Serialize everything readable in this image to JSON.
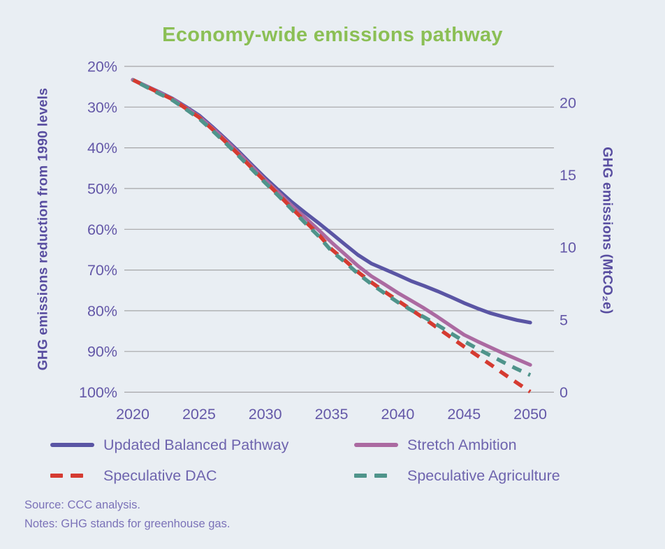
{
  "title": "Economy-wide emissions pathway",
  "colors": {
    "background": "#e9eef3",
    "title": "#8bbf55",
    "axis_text": "#6458a8",
    "axis_title": "#584da0",
    "legend_text": "#6e64ae",
    "gridline": "#a5a5a7",
    "footer_text": "#7b72b8"
  },
  "chart_data": {
    "type": "line",
    "title": "Economy-wide emissions pathway",
    "x": [
      2020,
      2021,
      2022,
      2023,
      2024,
      2025,
      2026,
      2027,
      2028,
      2029,
      2030,
      2031,
      2032,
      2033,
      2034,
      2035,
      2036,
      2037,
      2038,
      2039,
      2040,
      2041,
      2042,
      2043,
      2044,
      2045,
      2046,
      2047,
      2048,
      2049,
      2050
    ],
    "xticks": [
      2020,
      2025,
      2030,
      2035,
      2040,
      2045,
      2050
    ],
    "y_left": {
      "label": "GHG emissions reduction from 1990 levels",
      "unit": "%",
      "ticks": [
        20,
        30,
        40,
        50,
        60,
        70,
        80,
        90,
        100
      ],
      "range": [
        20,
        100
      ],
      "inverted": true
    },
    "y_right": {
      "label": "GHG emissions (MtCO₂e)",
      "ticks": [
        20,
        15,
        10,
        5,
        0
      ],
      "range": [
        0,
        22.5
      ]
    },
    "grid": "horizontal",
    "legend_position": "bottom",
    "series": [
      {
        "name": "Updated Balanced Pathway",
        "color": "#5a55a4",
        "style": "solid",
        "values": [
          23.3,
          24.8,
          26.3,
          27.9,
          29.9,
          32.0,
          34.8,
          37.8,
          40.9,
          44.2,
          47.4,
          50.4,
          53.3,
          55.9,
          58.4,
          61.0,
          63.7,
          66.3,
          68.4,
          69.8,
          71.2,
          72.7,
          73.9,
          75.2,
          76.6,
          78.1,
          79.4,
          80.6,
          81.5,
          82.3,
          82.9
        ]
      },
      {
        "name": "Stretch Ambition",
        "color": "#ab6aa1",
        "style": "solid",
        "values": [
          23.3,
          24.8,
          26.4,
          28.0,
          30.1,
          32.3,
          35.1,
          38.1,
          41.3,
          44.6,
          47.9,
          51.0,
          54.2,
          57.1,
          60.1,
          63.2,
          66.1,
          69.0,
          71.5,
          73.5,
          75.6,
          77.5,
          79.4,
          81.5,
          83.7,
          85.9,
          87.5,
          89.0,
          90.5,
          91.9,
          93.3
        ]
      },
      {
        "name": "Speculative DAC",
        "color": "#d53b31",
        "style": "dashed",
        "values": [
          23.3,
          24.9,
          26.5,
          28.1,
          30.3,
          32.5,
          35.4,
          38.5,
          41.7,
          45.0,
          48.3,
          51.5,
          54.8,
          58.0,
          61.2,
          64.9,
          67.6,
          70.5,
          73.0,
          75.3,
          77.5,
          79.7,
          81.9,
          84.2,
          86.5,
          88.8,
          91.0,
          93.2,
          95.5,
          97.7,
          99.9
        ]
      },
      {
        "name": "Speculative Agriculture",
        "color": "#4f948b",
        "style": "dashed",
        "values": [
          23.3,
          25.0,
          26.7,
          28.3,
          30.5,
          32.8,
          35.7,
          38.8,
          42.0,
          45.3,
          48.6,
          51.8,
          55.1,
          58.4,
          61.6,
          65.3,
          68.0,
          70.9,
          73.4,
          75.7,
          77.9,
          79.8,
          81.6,
          83.5,
          85.5,
          87.5,
          89.3,
          91.0,
          92.7,
          94.3,
          95.8
        ]
      }
    ]
  },
  "footer": {
    "source": "Source: CCC analysis.",
    "notes": "Notes: GHG stands for greenhouse gas."
  }
}
